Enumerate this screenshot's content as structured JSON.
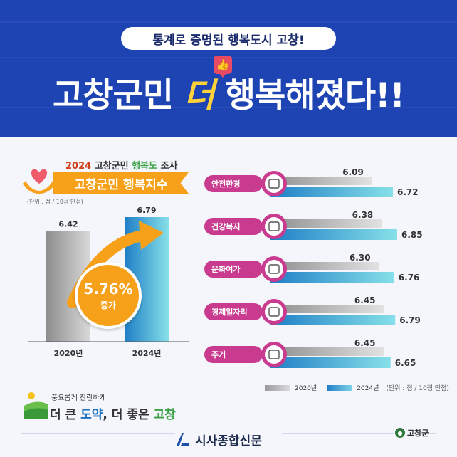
{
  "header": {
    "pill_text": "통계로 증명된 행복도시 고창!",
    "headline_pre": "고창군민 ",
    "headline_accent": "더",
    "headline_post": " 행복해졌다!!",
    "like_icon": "thumbs-up-icon"
  },
  "left_panel": {
    "survey_year": "2024",
    "survey_mid": " 고창군민 ",
    "survey_green": "행복도",
    "survey_end": " 조사",
    "banner": "고창군민 행복지수",
    "unit": "(단위 : 점 / 10점 만점)",
    "increase_pct": "5.76%",
    "increase_label": "증가"
  },
  "chart_data": [
    {
      "type": "bar",
      "title": "고창군민 행복지수",
      "categories": [
        "2020년",
        "2024년"
      ],
      "values": [
        6.42,
        6.79
      ],
      "unit": "(단위 : 점 / 10점 만점)",
      "ylim": [
        0,
        10
      ],
      "colors": [
        "#a9a9a9",
        "#29a7d6"
      ]
    },
    {
      "type": "bar",
      "orientation": "horizontal",
      "categories": [
        "안전환경",
        "건강복지",
        "문화여가",
        "경제일자리",
        "주거"
      ],
      "series": [
        {
          "name": "2020년",
          "values": [
            6.09,
            6.38,
            6.3,
            6.45,
            6.45
          ],
          "color": "#a9a9a9"
        },
        {
          "name": "2024년",
          "values": [
            6.72,
            6.85,
            6.76,
            6.79,
            6.65
          ],
          "color": "#1f7ec6"
        }
      ],
      "unit": "(단위 : 점 / 10점 만점)",
      "category_color": "#c93b8e"
    }
  ],
  "legend": {
    "s2020": "2020년",
    "s2024": "2024년",
    "unit": "(단위 : 점 / 10점 만점)"
  },
  "slogan": {
    "top": "풍요롭게 찬란하게",
    "p1": "더 큰 ",
    "p2": "도약",
    "p3": ", 더 좋은 ",
    "p4": "고창"
  },
  "footer": {
    "press_name": "시사종합신문",
    "county_name": "고창군"
  }
}
